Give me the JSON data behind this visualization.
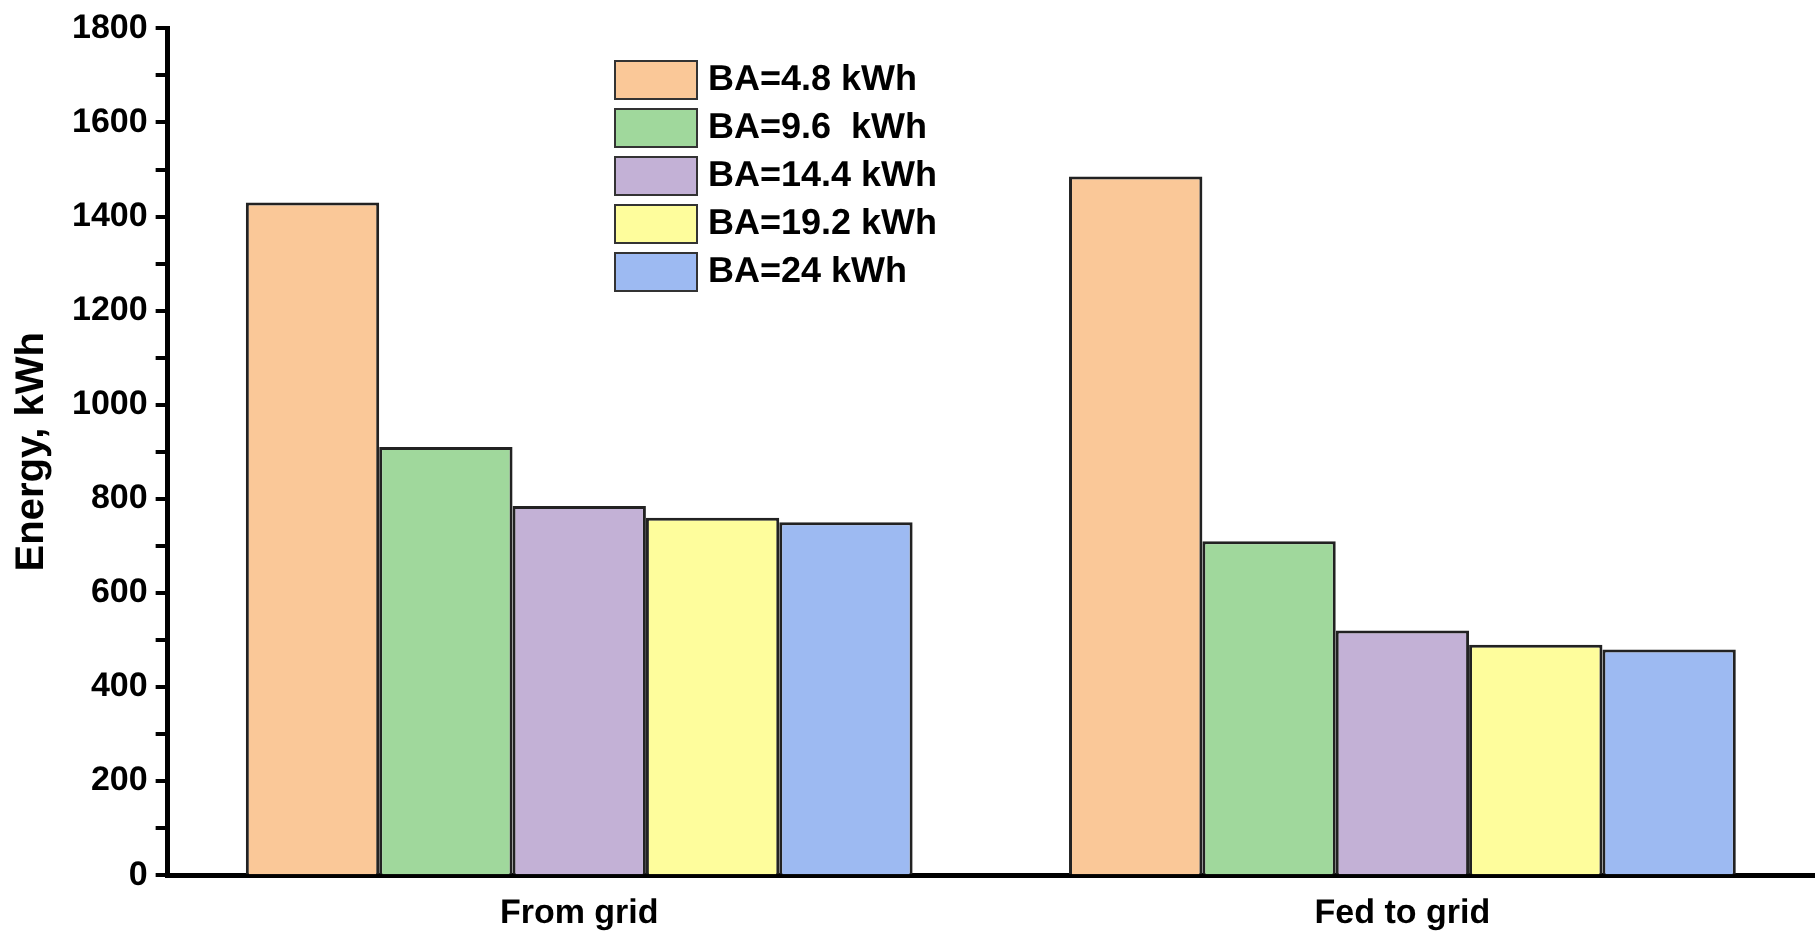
{
  "chart_data": {
    "type": "bar",
    "ylabel": "Energy, kWh",
    "categories": [
      "From grid",
      "Fed to grid"
    ],
    "series": [
      {
        "name": "BA=4.8 kWh",
        "color": "#fac898",
        "values": [
          1430,
          1485
        ]
      },
      {
        "name": "BA=9.6  kWh",
        "color": "#a0d89c",
        "values": [
          910,
          710
        ]
      },
      {
        "name": "BA=14.4 kWh",
        "color": "#c3b1d6",
        "values": [
          785,
          520
        ]
      },
      {
        "name": "BA=19.2 kWh",
        "color": "#fefd9c",
        "values": [
          760,
          490
        ]
      },
      {
        "name": "BA=24 kWh",
        "color": "#9dbaf2",
        "values": [
          750,
          480
        ]
      }
    ],
    "ylim": [
      0,
      1800
    ],
    "yticks": [
      0,
      {
        "value": 100,
        "label": null
      },
      200,
      {
        "value": 300,
        "label": null
      },
      400,
      {
        "value": 500,
        "label": null
      },
      600,
      {
        "value": 700,
        "label": null
      },
      800,
      {
        "value": 900,
        "label": null
      },
      1000,
      {
        "value": 1100,
        "label": null
      },
      1200,
      {
        "value": 1300,
        "label": null
      },
      1400,
      {
        "value": 1500,
        "label": null
      },
      1600,
      {
        "value": 1700,
        "label": null
      },
      1800
    ],
    "grid": false,
    "legend": "top left"
  }
}
